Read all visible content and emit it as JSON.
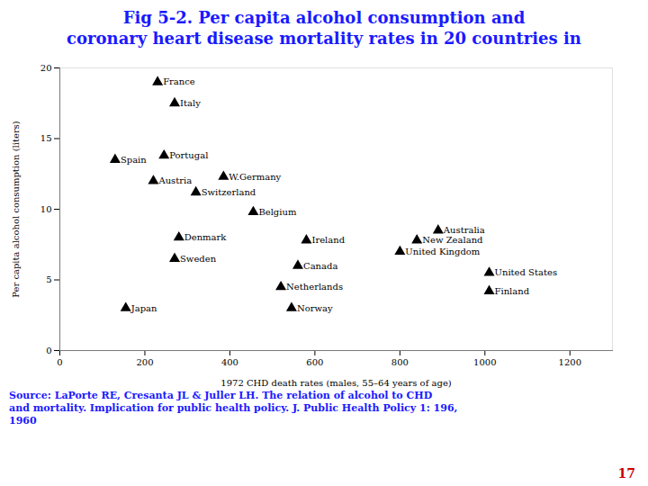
{
  "chart_data": {
    "type": "scatter",
    "title": "Fig 5-2. Per capita alcohol consumption and\ncoronary heart disease mortality rates in 20 countries in",
    "xlabel": "1972 CHD death rates (males, 55–64 years of age)",
    "ylabel": "Per capita alcohol consumption (liters)",
    "xlim": [
      0,
      1300
    ],
    "ylim": [
      0,
      20
    ],
    "xticks": [
      0,
      200,
      400,
      600,
      800,
      1000,
      1200
    ],
    "yticks": [
      0,
      5,
      10,
      15,
      20
    ],
    "labels": [
      "France",
      "Italy",
      "Spain",
      "Portugal",
      "Austria",
      "W.Germany",
      "Switzerland",
      "Belgium",
      "Denmark",
      "Ireland",
      "New Zealand",
      "Australia",
      "Sweden",
      "United Kingdom",
      "Canada",
      "United States",
      "Netherlands",
      "Finland",
      "Japan",
      "Norway"
    ],
    "x": [
      230,
      270,
      130,
      245,
      220,
      385,
      320,
      455,
      280,
      580,
      840,
      890,
      270,
      800,
      560,
      1010,
      520,
      1010,
      155,
      545
    ],
    "values": [
      19.0,
      17.5,
      13.5,
      13.8,
      12.0,
      12.3,
      11.2,
      9.8,
      8.0,
      7.8,
      7.8,
      8.5,
      6.5,
      7.0,
      6.0,
      5.5,
      4.5,
      4.2,
      3.0,
      3.0
    ],
    "color": "#000000",
    "marker": "triangle",
    "grid": false,
    "caption": "Source: LaPorte RE, Cresanta JL & Juller LH. The relation of alcohol to CHD\nand mortality. Implication for public health policy. J. Public Health Policy 1: 196,\n1960",
    "page_number": "17"
  }
}
